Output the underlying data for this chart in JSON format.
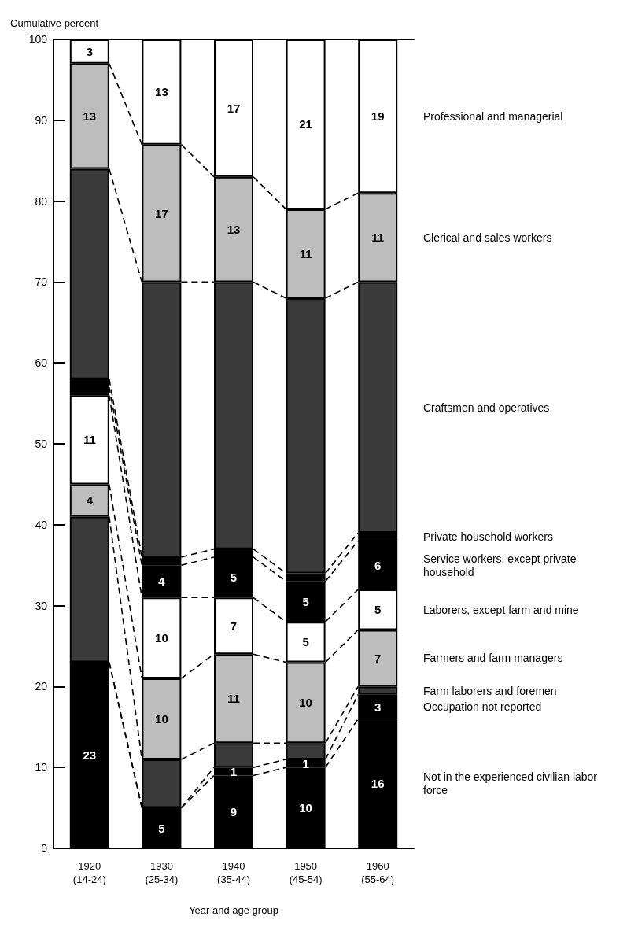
{
  "chart_data": {
    "type": "bar",
    "stacked": true,
    "ylabel": "Cumulative percent",
    "xlabel": "Year and age group",
    "categories": [
      "1920\n(14-24)",
      "1930\n(25-34)",
      "1940\n(35-44)",
      "1950\n(45-54)",
      "1960\n(55-64)"
    ],
    "ylim": [
      0,
      100
    ],
    "yticks": [
      0,
      10,
      20,
      30,
      40,
      50,
      60,
      70,
      80,
      90,
      100
    ],
    "grid": false,
    "legend": false,
    "series": [
      {
        "name": "Not in the experienced civilian labor force",
        "color": "#000000",
        "values": [
          23,
          5,
          9,
          10,
          16
        ],
        "value_labels": [
          "23",
          "5",
          "9",
          "10",
          "16"
        ]
      },
      {
        "name": "Occupation not reported",
        "color": "#000000",
        "values": [
          0,
          0,
          1,
          1,
          3
        ],
        "value_labels": [
          null,
          null,
          "1",
          "1",
          "3"
        ]
      },
      {
        "name": "Farm laborers and foremen",
        "color": "#3a3a3a",
        "values": [
          18,
          6,
          3,
          2,
          1
        ],
        "value_labels": [
          null,
          null,
          null,
          null,
          null
        ]
      },
      {
        "name": "Farmers and farm managers",
        "color": "#bdbdbd",
        "values": [
          4,
          10,
          11,
          10,
          7
        ],
        "value_labels": [
          "4",
          "10",
          "11",
          "10",
          "7"
        ]
      },
      {
        "name": "Laborers, except farm and mine",
        "color": "#ffffff",
        "values": [
          11,
          10,
          7,
          5,
          5
        ],
        "value_labels": [
          "11",
          "10",
          "7",
          "5",
          "5"
        ]
      },
      {
        "name": "Service workers, except private household",
        "color": "#000000",
        "values": [
          1,
          4,
          5,
          5,
          6
        ],
        "value_labels": [
          null,
          "4",
          "5",
          "5",
          "6"
        ]
      },
      {
        "name": "Private household workers",
        "color": "#000000",
        "values": [
          1,
          1,
          1,
          1,
          1
        ],
        "value_labels": [
          null,
          null,
          null,
          null,
          null
        ]
      },
      {
        "name": "Craftsmen and operatives",
        "color": "#3a3a3a",
        "values": [
          26,
          34,
          33,
          34,
          31
        ],
        "value_labels": [
          null,
          null,
          null,
          null,
          null
        ]
      },
      {
        "name": "Clerical and sales workers",
        "color": "#bdbdbd",
        "values": [
          13,
          17,
          13,
          11,
          11
        ],
        "value_labels": [
          "13",
          "17",
          "13",
          "11",
          "11"
        ]
      },
      {
        "name": "Professional and managerial",
        "color": "#ffffff",
        "values": [
          3,
          13,
          17,
          21,
          19
        ],
        "value_labels": [
          "3",
          "13",
          "17",
          "21",
          "19"
        ]
      }
    ]
  }
}
